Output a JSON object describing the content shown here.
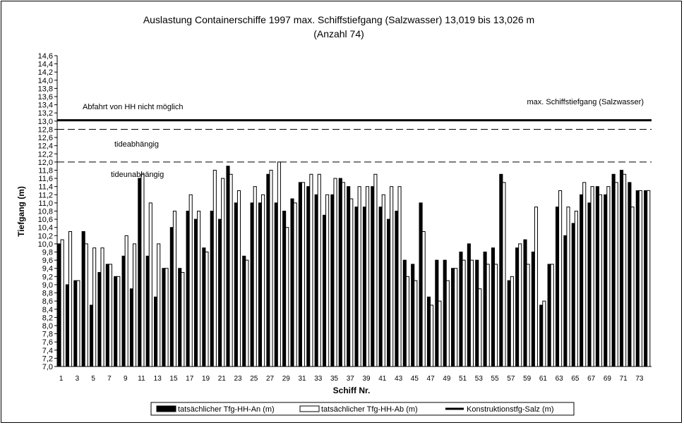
{
  "chart_data": {
    "type": "bar",
    "title_line1": "Auslastung Containerschiffe 1997 max. Schiffstiefgang (Salzwasser) 13,019 bis 13,026 m",
    "title_line2": "(Anzahl 74)",
    "xlabel": "Schiff Nr.",
    "ylabel": "Tiefgang (m)",
    "ylim": [
      7.0,
      14.6
    ],
    "ytick_step": 0.2,
    "y_tick_labels": [
      "7,0",
      "7,2",
      "7,4",
      "7,6",
      "7,8",
      "8,0",
      "8,2",
      "8,4",
      "8,6",
      "8,8",
      "9,0",
      "9,2",
      "9,4",
      "9,6",
      "9,8",
      "10,0",
      "10,2",
      "10,4",
      "10,6",
      "10,8",
      "11,0",
      "11,2",
      "11,4",
      "11,6",
      "11,8",
      "12,0",
      "12,2",
      "12,4",
      "12,6",
      "12,8",
      "13,0",
      "13,2",
      "13,4",
      "13,6",
      "13,8",
      "14,0",
      "14,2",
      "14,4",
      "14,6"
    ],
    "x_tick_labels": [
      "1",
      "3",
      "5",
      "7",
      "9",
      "11",
      "13",
      "15",
      "17",
      "19",
      "21",
      "23",
      "25",
      "27",
      "29",
      "31",
      "33",
      "35",
      "37",
      "39",
      "41",
      "43",
      "45",
      "47",
      "49",
      "51",
      "53",
      "55",
      "57",
      "59",
      "61",
      "63",
      "65",
      "67",
      "69",
      "71",
      "73"
    ],
    "categories": [
      1,
      2,
      3,
      4,
      5,
      6,
      7,
      8,
      9,
      10,
      11,
      12,
      13,
      14,
      15,
      16,
      17,
      18,
      19,
      20,
      21,
      22,
      23,
      24,
      25,
      26,
      27,
      28,
      29,
      30,
      31,
      32,
      33,
      34,
      35,
      36,
      37,
      38,
      39,
      40,
      41,
      42,
      43,
      44,
      45,
      46,
      47,
      48,
      49,
      50,
      51,
      52,
      53,
      54,
      55,
      56,
      57,
      58,
      59,
      60,
      61,
      62,
      63,
      64,
      65,
      66,
      67,
      68,
      69,
      70,
      71,
      72,
      73,
      74
    ],
    "series": [
      {
        "name": "tatsächlicher Tfg-HH-An (m)",
        "color": "#000000",
        "values": [
          10.0,
          9.0,
          9.1,
          10.3,
          8.5,
          9.3,
          9.5,
          9.2,
          9.7,
          8.9,
          11.6,
          9.7,
          8.7,
          9.4,
          10.4,
          9.4,
          10.8,
          10.6,
          9.9,
          10.8,
          10.6,
          11.9,
          11.0,
          9.7,
          11.0,
          11.0,
          11.7,
          11.0,
          10.8,
          11.1,
          11.5,
          11.4,
          11.2,
          10.7,
          11.2,
          11.6,
          11.4,
          10.9,
          10.9,
          11.4,
          10.9,
          10.6,
          10.8,
          9.6,
          9.5,
          11.0,
          8.7,
          9.6,
          9.6,
          9.4,
          9.8,
          10.0,
          9.6,
          9.8,
          9.9,
          11.7,
          9.1,
          9.9,
          10.1,
          9.8,
          8.5,
          9.5,
          10.9,
          10.2,
          10.5,
          11.2,
          11.0,
          11.4,
          11.2,
          11.7,
          11.8,
          11.5,
          11.3,
          11.3
        ]
      },
      {
        "name": "tatsächlicher Tfg-HH-Ab (m)",
        "color": "#ffffff",
        "values": [
          10.1,
          10.3,
          9.1,
          10.0,
          9.9,
          9.9,
          9.5,
          9.2,
          10.2,
          10.0,
          11.7,
          11.0,
          10.0,
          9.4,
          10.8,
          9.3,
          11.2,
          10.8,
          9.8,
          11.8,
          11.6,
          11.7,
          11.3,
          9.6,
          11.4,
          11.2,
          11.8,
          12.0,
          10.4,
          11.0,
          11.5,
          11.7,
          11.7,
          11.2,
          11.6,
          11.5,
          11.1,
          11.4,
          11.4,
          11.7,
          11.2,
          11.4,
          11.4,
          9.2,
          9.1,
          10.3,
          8.5,
          8.6,
          9.1,
          9.4,
          9.6,
          9.6,
          8.9,
          9.5,
          9.5,
          11.5,
          9.2,
          10.0,
          9.5,
          10.9,
          8.6,
          9.5,
          11.3,
          10.9,
          10.8,
          11.5,
          11.4,
          11.2,
          11.4,
          11.5,
          11.7,
          10.9,
          11.3,
          11.3
        ]
      }
    ],
    "reference_lines": [
      {
        "name": "Konstruktionstfg-Salz (m)",
        "value": 13.02,
        "style": "solid-thick"
      },
      {
        "value": 12.8,
        "style": "dashed"
      },
      {
        "value": 12.0,
        "style": "dashed"
      }
    ],
    "annotations": {
      "left_top": "Abfahrt von HH nicht möglich",
      "right_top": "max. Schiffstiefgang (Salzwasser)",
      "tide_dependent": "tideabhängig",
      "tide_independent": "tideunabhängig"
    },
    "legend": {
      "position": "bottom-center",
      "items": [
        "tatsächlicher Tfg-HH-An (m)",
        "tatsächlicher Tfg-HH-Ab (m)",
        "Konstruktionstfg-Salz (m)"
      ]
    },
    "grid": false
  }
}
